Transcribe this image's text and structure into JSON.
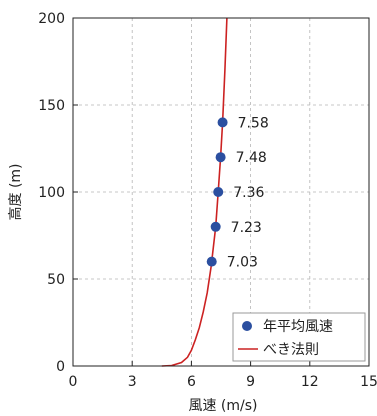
{
  "chart_data": {
    "type": "scatter",
    "title": "",
    "xlabel": "風速 (m/s)",
    "ylabel": "高度 (m)",
    "xlim": [
      0,
      15
    ],
    "ylim": [
      0,
      200
    ],
    "xticks": [
      0,
      3,
      6,
      9,
      12,
      15
    ],
    "yticks": [
      0,
      50,
      100,
      150,
      200
    ],
    "grid": true,
    "legend_position": "bottom-right",
    "series": [
      {
        "name": "年平均風速",
        "kind": "scatter",
        "color": "#2b4fa0",
        "points": [
          {
            "x": 7.03,
            "y": 60,
            "label": "7.03"
          },
          {
            "x": 7.23,
            "y": 80,
            "label": "7.23"
          },
          {
            "x": 7.36,
            "y": 100,
            "label": "7.36"
          },
          {
            "x": 7.48,
            "y": 120,
            "label": "7.48"
          },
          {
            "x": 7.58,
            "y": 140,
            "label": "7.58"
          }
        ]
      },
      {
        "name": "べき法則",
        "kind": "line",
        "color": "#cc2222",
        "x": [
          4.5,
          5.0,
          5.5,
          5.8,
          6.0,
          6.2,
          6.4,
          6.6,
          6.8,
          7.0,
          7.23,
          7.36,
          7.48,
          7.58,
          7.7,
          7.8
        ],
        "y": [
          0,
          0.3,
          2,
          5,
          9,
          15,
          22,
          31,
          42,
          57,
          80,
          100,
          120,
          140,
          170,
          200
        ]
      }
    ]
  }
}
